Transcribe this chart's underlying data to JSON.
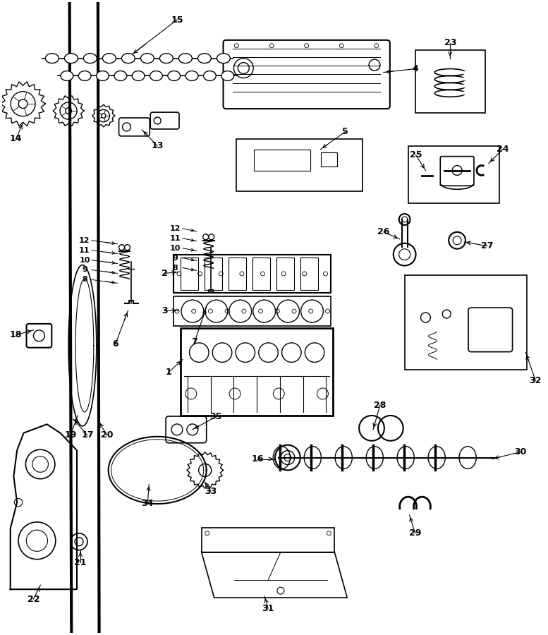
{
  "bg_color": "#ffffff",
  "line_color": "#000000",
  "fig_width": 7.77,
  "fig_height": 9.0,
  "dpi": 100
}
